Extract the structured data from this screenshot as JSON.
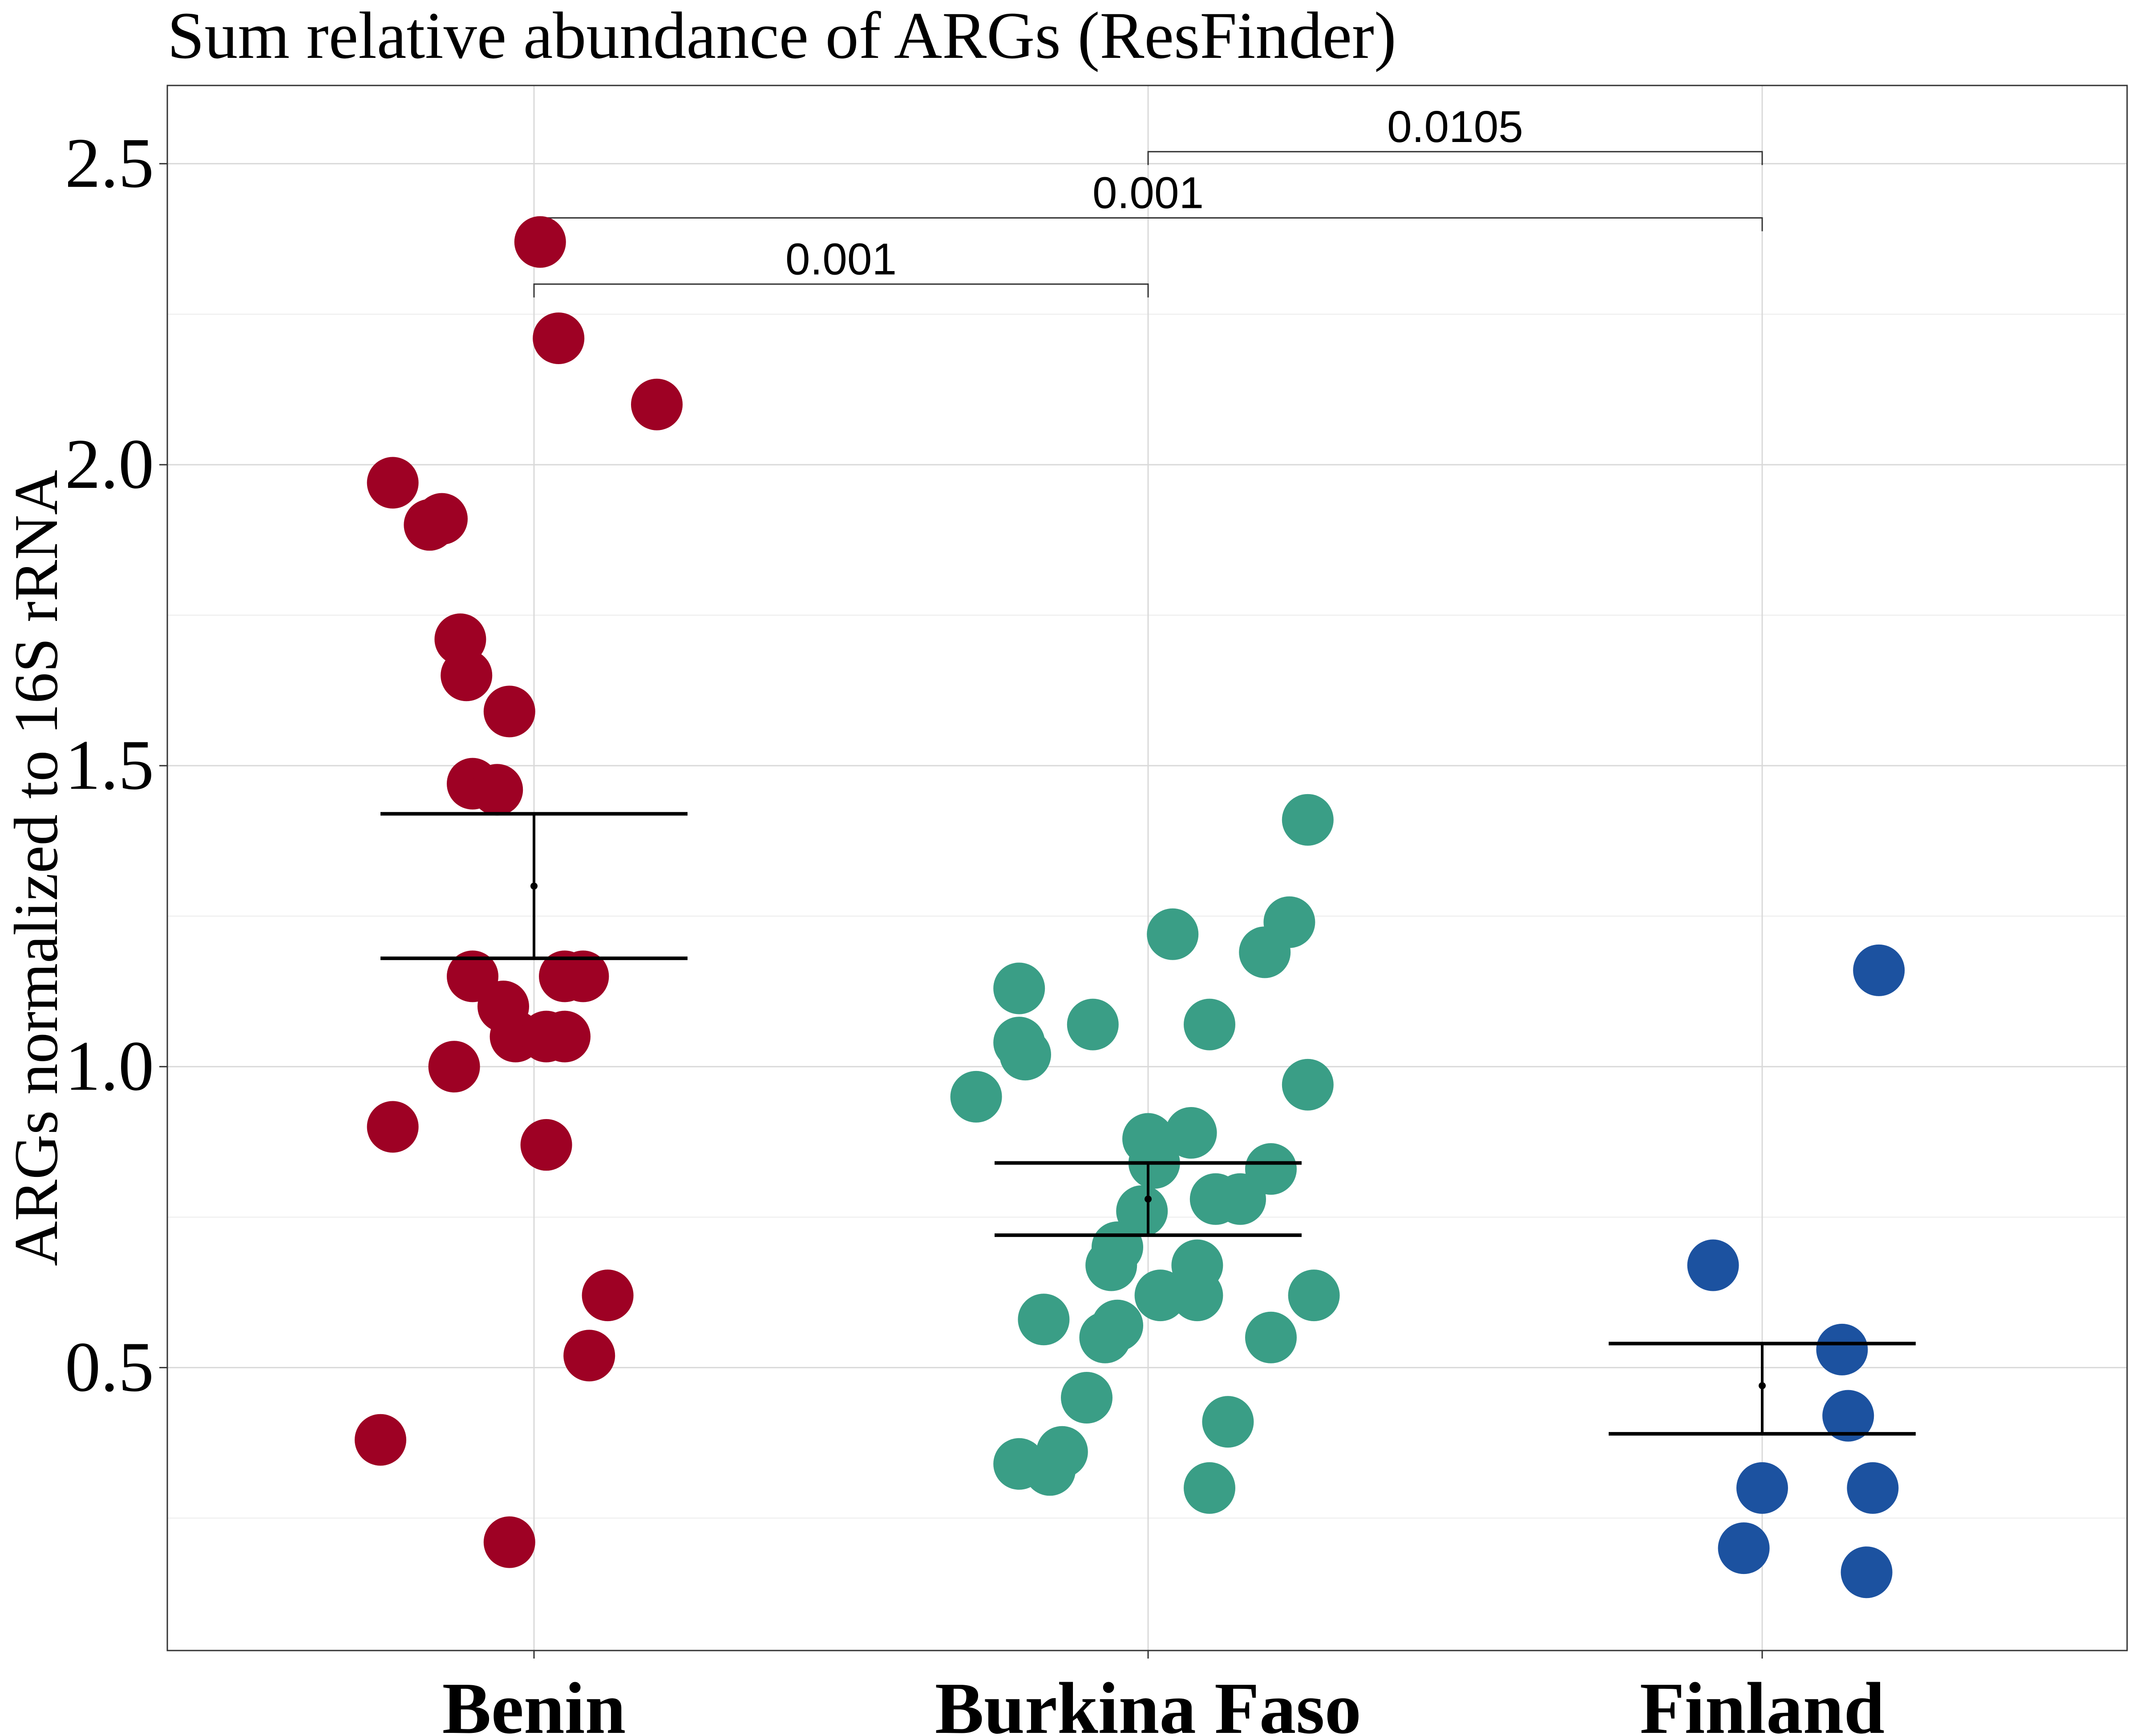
{
  "chart_data": {
    "type": "scatter",
    "title": "Sum relative abundance of ARGs (ResFinder)",
    "xlabel": "",
    "ylabel": "ARGs normalized to 16S rRNA",
    "ylim": [
      0.03,
      2.63
    ],
    "yticks": [
      0.5,
      1.0,
      1.5,
      2.0,
      2.5
    ],
    "ytick_labels": [
      "0.5",
      "1.0",
      "1.5",
      "2.0",
      "2.5"
    ],
    "grid": true,
    "legend": "none",
    "categories": [
      "Benin",
      "Burkina Faso",
      "Finland"
    ],
    "series": [
      {
        "category": "Benin",
        "color": "#9E0124",
        "points": [
          {
            "x": 0.01,
            "y": 2.37
          },
          {
            "x": 0.04,
            "y": 2.21
          },
          {
            "x": 0.2,
            "y": 2.1
          },
          {
            "x": -0.23,
            "y": 1.97
          },
          {
            "x": -0.17,
            "y": 1.9
          },
          {
            "x": -0.15,
            "y": 1.91
          },
          {
            "x": -0.12,
            "y": 1.71
          },
          {
            "x": -0.11,
            "y": 1.65
          },
          {
            "x": -0.04,
            "y": 1.59
          },
          {
            "x": -0.1,
            "y": 1.47
          },
          {
            "x": -0.06,
            "y": 1.46
          },
          {
            "x": -0.1,
            "y": 1.15
          },
          {
            "x": 0.05,
            "y": 1.15
          },
          {
            "x": 0.08,
            "y": 1.15
          },
          {
            "x": -0.05,
            "y": 1.1
          },
          {
            "x": -0.03,
            "y": 1.05
          },
          {
            "x": 0.02,
            "y": 1.05
          },
          {
            "x": 0.05,
            "y": 1.05
          },
          {
            "x": -0.13,
            "y": 1.0
          },
          {
            "x": -0.23,
            "y": 0.9
          },
          {
            "x": 0.02,
            "y": 0.87
          },
          {
            "x": 0.12,
            "y": 0.62
          },
          {
            "x": 0.09,
            "y": 0.52
          },
          {
            "x": -0.25,
            "y": 0.38
          },
          {
            "x": -0.04,
            "y": 0.21
          }
        ],
        "mean": 1.3,
        "error_low": 1.18,
        "error_high": 1.42
      },
      {
        "category": "Burkina Faso",
        "color": "#3A9E86",
        "points": [
          {
            "x": 0.26,
            "y": 1.41
          },
          {
            "x": 0.23,
            "y": 1.24
          },
          {
            "x": 0.04,
            "y": 1.22
          },
          {
            "x": 0.19,
            "y": 1.19
          },
          {
            "x": -0.21,
            "y": 1.13
          },
          {
            "x": -0.09,
            "y": 1.07
          },
          {
            "x": 0.1,
            "y": 1.07
          },
          {
            "x": -0.21,
            "y": 1.04
          },
          {
            "x": -0.2,
            "y": 1.02
          },
          {
            "x": 0.26,
            "y": 0.97
          },
          {
            "x": -0.28,
            "y": 0.95
          },
          {
            "x": 0.0,
            "y": 0.88
          },
          {
            "x": 0.07,
            "y": 0.89
          },
          {
            "x": 0.01,
            "y": 0.84
          },
          {
            "x": 0.2,
            "y": 0.83
          },
          {
            "x": 0.11,
            "y": 0.78
          },
          {
            "x": 0.15,
            "y": 0.78
          },
          {
            "x": -0.01,
            "y": 0.76
          },
          {
            "x": -0.05,
            "y": 0.7
          },
          {
            "x": -0.06,
            "y": 0.67
          },
          {
            "x": 0.08,
            "y": 0.67
          },
          {
            "x": 0.02,
            "y": 0.62
          },
          {
            "x": 0.08,
            "y": 0.62
          },
          {
            "x": 0.27,
            "y": 0.62
          },
          {
            "x": -0.17,
            "y": 0.58
          },
          {
            "x": -0.05,
            "y": 0.57
          },
          {
            "x": -0.07,
            "y": 0.55
          },
          {
            "x": 0.2,
            "y": 0.55
          },
          {
            "x": -0.1,
            "y": 0.45
          },
          {
            "x": 0.13,
            "y": 0.41
          },
          {
            "x": -0.14,
            "y": 0.36
          },
          {
            "x": -0.21,
            "y": 0.34
          },
          {
            "x": -0.16,
            "y": 0.33
          },
          {
            "x": 0.1,
            "y": 0.3
          }
        ],
        "mean": 0.78,
        "error_low": 0.72,
        "error_high": 0.84
      },
      {
        "category": "Finland",
        "color": "#1C52A0",
        "points": [
          {
            "x": 0.19,
            "y": 1.16
          },
          {
            "x": -0.08,
            "y": 0.67
          },
          {
            "x": 0.13,
            "y": 0.53
          },
          {
            "x": 0.14,
            "y": 0.42
          },
          {
            "x": 0.0,
            "y": 0.3
          },
          {
            "x": 0.18,
            "y": 0.3
          },
          {
            "x": -0.03,
            "y": 0.2
          },
          {
            "x": 0.17,
            "y": 0.16
          }
        ],
        "mean": 0.47,
        "error_low": 0.39,
        "error_high": 0.54
      }
    ],
    "comparisons": [
      {
        "from": "Benin",
        "to": "Burkina Faso",
        "label": "0.001",
        "y": 2.3
      },
      {
        "from": "Benin",
        "to": "Finland",
        "label": "0.001",
        "y": 2.41
      },
      {
        "from": "Burkina Faso",
        "to": "Finland",
        "label": "0.0105",
        "y": 2.52
      }
    ]
  }
}
